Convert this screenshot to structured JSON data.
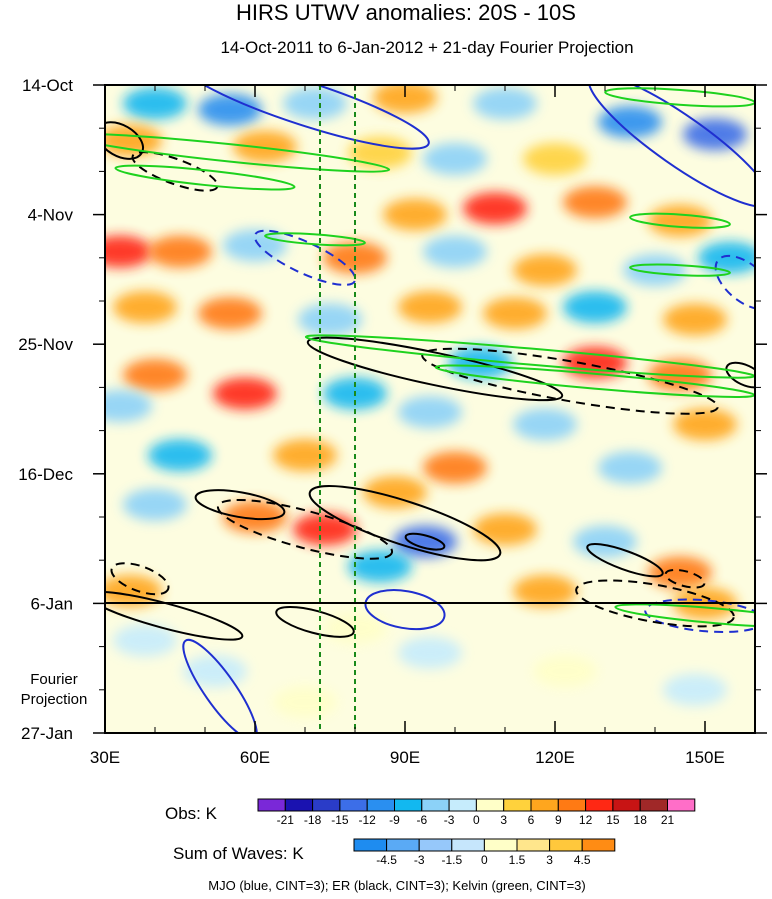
{
  "chart_data": {
    "type": "heatmap",
    "title": "HIRS UTWV anomalies: 20S - 10S",
    "subtitle": "14-Oct-2011 to 6-Jan-2012 + 21-day Fourier Projection",
    "x_axis": {
      "range": [
        30,
        160
      ],
      "ticks": [
        30,
        60,
        90,
        120,
        150
      ],
      "tick_labels": [
        "30E",
        "60E",
        "90E",
        "120E",
        "150E"
      ]
    },
    "y_axis": {
      "range_days": [
        0,
        105
      ],
      "ticks": [
        0,
        21,
        42,
        63,
        84,
        105
      ],
      "tick_labels": [
        "14-Oct",
        "4-Nov",
        "25-Nov",
        "16-Dec",
        "6-Jan",
        "27-Jan"
      ],
      "obs_end_day": 84,
      "projection_label": [
        "Fourier",
        "Projection"
      ]
    },
    "reference_lines_lon": [
      73,
      80
    ],
    "blobs": [
      {
        "lon": 40,
        "day": 3,
        "v": -9
      },
      {
        "lon": 55,
        "day": 4,
        "v": -12
      },
      {
        "lon": 72,
        "day": 3,
        "v": -6
      },
      {
        "lon": 90,
        "day": 2,
        "v": 6
      },
      {
        "lon": 110,
        "day": 3,
        "v": -6
      },
      {
        "lon": 135,
        "day": 6,
        "v": -12
      },
      {
        "lon": 152,
        "day": 8,
        "v": -15
      },
      {
        "lon": 35,
        "day": 9,
        "v": 6
      },
      {
        "lon": 62,
        "day": 10,
        "v": 6
      },
      {
        "lon": 85,
        "day": 11,
        "v": 3
      },
      {
        "lon": 100,
        "day": 12,
        "v": -6
      },
      {
        "lon": 120,
        "day": 12,
        "v": 3
      },
      {
        "lon": 108,
        "day": 20,
        "v": 12
      },
      {
        "lon": 92,
        "day": 21,
        "v": 6
      },
      {
        "lon": 128,
        "day": 19,
        "v": 9
      },
      {
        "lon": 145,
        "day": 22,
        "v": 6
      },
      {
        "lon": 33,
        "day": 27,
        "v": 12
      },
      {
        "lon": 45,
        "day": 27,
        "v": 9
      },
      {
        "lon": 60,
        "day": 26,
        "v": -6
      },
      {
        "lon": 80,
        "day": 28,
        "v": 9
      },
      {
        "lon": 100,
        "day": 27,
        "v": -6
      },
      {
        "lon": 118,
        "day": 30,
        "v": 6
      },
      {
        "lon": 140,
        "day": 30,
        "v": -6
      },
      {
        "lon": 155,
        "day": 28,
        "v": -9
      },
      {
        "lon": 38,
        "day": 36,
        "v": 6
      },
      {
        "lon": 55,
        "day": 37,
        "v": 9
      },
      {
        "lon": 75,
        "day": 38,
        "v": -6
      },
      {
        "lon": 95,
        "day": 36,
        "v": 6
      },
      {
        "lon": 112,
        "day": 37,
        "v": 6
      },
      {
        "lon": 128,
        "day": 36,
        "v": -9
      },
      {
        "lon": 148,
        "day": 38,
        "v": 6
      },
      {
        "lon": 128,
        "day": 45,
        "v": 12
      },
      {
        "lon": 145,
        "day": 47,
        "v": 9
      },
      {
        "lon": 105,
        "day": 45,
        "v": -9
      },
      {
        "lon": 40,
        "day": 47,
        "v": 9
      },
      {
        "lon": 58,
        "day": 50,
        "v": 12
      },
      {
        "lon": 33,
        "day": 52,
        "v": -6
      },
      {
        "lon": 80,
        "day": 50,
        "v": -9
      },
      {
        "lon": 95,
        "day": 53,
        "v": -6
      },
      {
        "lon": 118,
        "day": 55,
        "v": -6
      },
      {
        "lon": 150,
        "day": 55,
        "v": 6
      },
      {
        "lon": 45,
        "day": 60,
        "v": -9
      },
      {
        "lon": 70,
        "day": 60,
        "v": 6
      },
      {
        "lon": 100,
        "day": 62,
        "v": 9
      },
      {
        "lon": 135,
        "day": 62,
        "v": -6
      },
      {
        "lon": 88,
        "day": 66,
        "v": 6
      },
      {
        "lon": 60,
        "day": 70,
        "v": 9
      },
      {
        "lon": 74,
        "day": 72,
        "v": 12
      },
      {
        "lon": 40,
        "day": 68,
        "v": -6
      },
      {
        "lon": 94,
        "day": 74,
        "v": -15
      },
      {
        "lon": 85,
        "day": 78,
        "v": -9
      },
      {
        "lon": 110,
        "day": 72,
        "v": 6
      },
      {
        "lon": 130,
        "day": 74,
        "v": -6
      },
      {
        "lon": 145,
        "day": 79,
        "v": 9
      },
      {
        "lon": 35,
        "day": 82,
        "v": 6
      },
      {
        "lon": 118,
        "day": 82,
        "v": 6
      },
      {
        "lon": 150,
        "day": 84,
        "v": 6
      },
      {
        "lon": 38,
        "day": 90,
        "v": -3
      },
      {
        "lon": 52,
        "day": 95,
        "v": -3
      },
      {
        "lon": 80,
        "day": 88,
        "v": 1.5
      },
      {
        "lon": 95,
        "day": 92,
        "v": -1.5
      },
      {
        "lon": 122,
        "day": 95,
        "v": 1.5
      },
      {
        "lon": 148,
        "day": 98,
        "v": -1.5
      },
      {
        "lon": 70,
        "day": 100,
        "v": 1.5
      }
    ],
    "contours": {
      "mjo": [
        {
          "lon": 70,
          "day": 3,
          "rx": 26,
          "ry": 3.5,
          "rot": 18,
          "dash": false
        },
        {
          "lon": 145,
          "day": 9,
          "rx": 22,
          "ry": 4,
          "rot": 35,
          "dash": false
        },
        {
          "lon": 70,
          "day": 28,
          "rx": 11,
          "ry": 2.5,
          "rot": 25,
          "dash": true
        },
        {
          "lon": 158,
          "day": 32,
          "rx": 7,
          "ry": 3,
          "rot": 40,
          "dash": true
        },
        {
          "lon": 90,
          "day": 85,
          "rx": 8,
          "ry": 3,
          "rot": 10,
          "dash": false
        },
        {
          "lon": 150,
          "day": 86,
          "rx": 12,
          "ry": 2.5,
          "rot": 5,
          "dash": true
        },
        {
          "lon": 53,
          "day": 98,
          "rx": 12,
          "ry": 2.5,
          "rot": 55,
          "dash": false
        }
      ],
      "er": [
        {
          "lon": 33,
          "day": 9,
          "rx": 5,
          "ry": 2.5,
          "rot": 30,
          "dash": false
        },
        {
          "lon": 44,
          "day": 14,
          "rx": 9,
          "ry": 2,
          "rot": 20,
          "dash": true
        },
        {
          "lon": 96,
          "day": 46,
          "rx": 26,
          "ry": 2.6,
          "rot": 12,
          "dash": false
        },
        {
          "lon": 123,
          "day": 48,
          "rx": 30,
          "ry": 3.2,
          "rot": 10,
          "dash": true
        },
        {
          "lon": 57,
          "day": 68,
          "rx": 9,
          "ry": 2,
          "rot": 10,
          "dash": false
        },
        {
          "lon": 70,
          "day": 72,
          "rx": 18,
          "ry": 3,
          "rot": 15,
          "dash": true
        },
        {
          "lon": 90,
          "day": 71,
          "rx": 20,
          "ry": 3.5,
          "rot": 18,
          "dash": false
        },
        {
          "lon": 94,
          "day": 74,
          "rx": 4,
          "ry": 1,
          "rot": 15,
          "dash": false
        },
        {
          "lon": 37,
          "day": 80,
          "rx": 6,
          "ry": 2,
          "rot": 20,
          "dash": true
        },
        {
          "lon": 134,
          "day": 77,
          "rx": 8,
          "ry": 1.5,
          "rot": 20,
          "dash": false
        },
        {
          "lon": 146,
          "day": 80,
          "rx": 4,
          "ry": 1.2,
          "rot": 15,
          "dash": true
        },
        {
          "lon": 140,
          "day": 84,
          "rx": 16,
          "ry": 3,
          "rot": 10,
          "dash": true
        },
        {
          "lon": 42,
          "day": 86,
          "rx": 16,
          "ry": 2,
          "rot": 15,
          "dash": false
        },
        {
          "lon": 72,
          "day": 87,
          "rx": 8,
          "ry": 1.8,
          "rot": 15,
          "dash": false
        },
        {
          "lon": 158,
          "day": 47,
          "rx": 4,
          "ry": 1.6,
          "rot": 25,
          "dash": false
        }
      ],
      "kelvin": [
        {
          "lon": 55,
          "day": 11,
          "rx": 32,
          "ry": 1.4,
          "rot": 6,
          "dash": false
        },
        {
          "lon": 50,
          "day": 15,
          "rx": 18,
          "ry": 1.2,
          "rot": 6,
          "dash": false
        },
        {
          "lon": 145,
          "day": 2,
          "rx": 15,
          "ry": 1.2,
          "rot": 4,
          "dash": false
        },
        {
          "lon": 72,
          "day": 25,
          "rx": 10,
          "ry": 0.8,
          "rot": 4,
          "dash": false
        },
        {
          "lon": 145,
          "day": 22,
          "rx": 10,
          "ry": 1,
          "rot": 4,
          "dash": false
        },
        {
          "lon": 115,
          "day": 44,
          "rx": 45,
          "ry": 1.3,
          "rot": 5,
          "dash": false
        },
        {
          "lon": 128,
          "day": 48,
          "rx": 32,
          "ry": 1.2,
          "rot": 5,
          "dash": false
        },
        {
          "lon": 152,
          "day": 86,
          "rx": 20,
          "ry": 1.2,
          "rot": 5,
          "dash": false
        },
        {
          "lon": 145,
          "day": 30,
          "rx": 10,
          "ry": 0.8,
          "rot": 3,
          "dash": false
        }
      ]
    },
    "obs_colorbar": {
      "label": "Obs: K",
      "colors": [
        "#7a28d8",
        "#1a12b0",
        "#2a3cc8",
        "#3c6ee8",
        "#2a8ff0",
        "#12b8f0",
        "#8cd2f8",
        "#c6ecfc",
        "#ffffc8",
        "#ffd23c",
        "#ffa61e",
        "#ff7a14",
        "#ff2814",
        "#c81414",
        "#a02828",
        "#ff6ec8"
      ],
      "tick_labels": [
        "-21",
        "-18",
        "-15",
        "-12",
        "-9",
        "-6",
        "-3",
        "0",
        "3",
        "6",
        "9",
        "12",
        "15",
        "18",
        "21"
      ]
    },
    "waves_colorbar": {
      "label": "Sum of Waves: K",
      "colors": [
        "#1e8cf0",
        "#5aaaf5",
        "#96c8fa",
        "#c6e6fc",
        "#ffffc8",
        "#ffe68c",
        "#ffc83c",
        "#ff8c14"
      ],
      "tick_labels": [
        "-4.5",
        "-3",
        "-1.5",
        "0",
        "1.5",
        "3",
        "4.5"
      ]
    },
    "footnote": "MJO (blue, CINT=3); ER (black, CINT=3); Kelvin (green, CINT=3)",
    "colors": {
      "mjo": "#1f2fd0",
      "er": "#000000",
      "kelvin": "#1ed21e",
      "reference_line": "#1a8a1a"
    }
  }
}
